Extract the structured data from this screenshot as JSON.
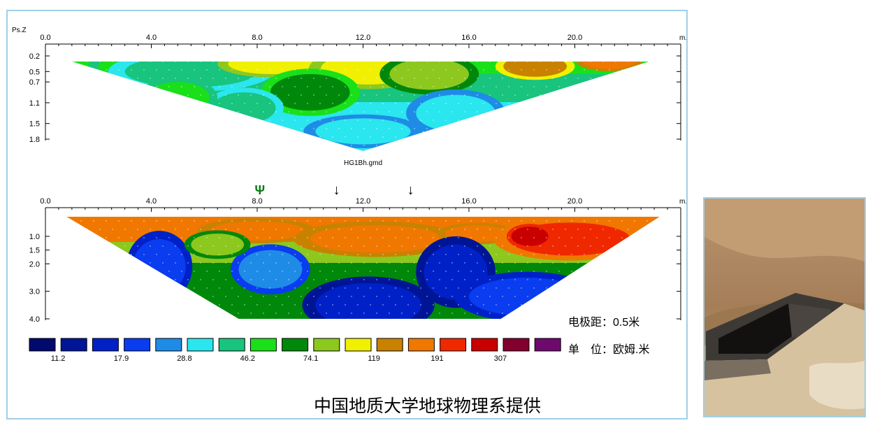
{
  "chart_data": [
    {
      "type": "heatmap",
      "title": "HG1Bh.gmd",
      "y_axis_label": "Ps.Z",
      "x_unit": "m.",
      "x_ticks": [
        "0.0",
        "4.0",
        "8.0",
        "12.0",
        "16.0",
        "20.0"
      ],
      "xlim": [
        0,
        24
      ],
      "y_ticks": [
        "0.2",
        "0.5",
        "0.7",
        "1.1",
        "1.5",
        "1.8"
      ],
      "y_values": [
        0.2,
        0.5,
        0.7,
        1.1,
        1.5,
        1.8
      ],
      "section_x_range": [
        1.0,
        22.8
      ],
      "apex_x": 12.0,
      "regions": [
        {
          "x": 3.5,
          "y": 0.4,
          "rx": 1.5,
          "ry": 0.25,
          "level": 7
        },
        {
          "x": 5.5,
          "y": 0.5,
          "rx": 2.5,
          "ry": 0.3,
          "level": 6
        },
        {
          "x": 8.5,
          "y": 0.35,
          "rx": 1.6,
          "ry": 0.2,
          "level": 10
        },
        {
          "x": 12.2,
          "y": 0.45,
          "rx": 1.8,
          "ry": 0.3,
          "level": 10
        },
        {
          "x": 14.5,
          "y": 0.55,
          "rx": 1.5,
          "ry": 0.3,
          "level": 9
        },
        {
          "x": 18.5,
          "y": 0.4,
          "rx": 1.2,
          "ry": 0.2,
          "level": 11
        },
        {
          "x": 21.3,
          "y": 0.3,
          "rx": 1.0,
          "ry": 0.15,
          "level": 12
        },
        {
          "x": 10.0,
          "y": 0.9,
          "rx": 1.5,
          "ry": 0.35,
          "level": 8
        },
        {
          "x": 15.5,
          "y": 1.3,
          "rx": 1.5,
          "ry": 0.35,
          "level": 5
        },
        {
          "x": 12.0,
          "y": 1.65,
          "rx": 1.8,
          "ry": 0.25,
          "level": 5
        },
        {
          "x": 7.5,
          "y": 1.2,
          "rx": 1.2,
          "ry": 0.3,
          "level": 6
        },
        {
          "x": 5.0,
          "y": 1.0,
          "rx": 1.2,
          "ry": 0.3,
          "level": 7
        }
      ]
    },
    {
      "type": "heatmap",
      "title": "",
      "x_unit": "m.",
      "x_ticks": [
        "0.0",
        "4.0",
        "8.0",
        "12.0",
        "16.0",
        "20.0"
      ],
      "xlim": [
        0,
        24
      ],
      "y_ticks": [
        "1.0",
        "1.5",
        "2.0",
        "3.0",
        "4.0"
      ],
      "y_values": [
        1.0,
        1.5,
        2.0,
        3.0,
        4.0
      ],
      "section_x_range": [
        0.8,
        23.2
      ],
      "bottom_x_range": [
        7.3,
        17.2
      ],
      "markers": [
        {
          "x": 8.1,
          "symbol": "Ψ"
        },
        {
          "x": 11.0,
          "symbol": "↓"
        },
        {
          "x": 13.8,
          "symbol": "↓"
        }
      ],
      "regions": [
        {
          "x": 8.0,
          "y": 0.8,
          "rx": 1.8,
          "ry": 0.35,
          "level": 12
        },
        {
          "x": 12.5,
          "y": 1.1,
          "rx": 2.5,
          "ry": 0.5,
          "level": 12
        },
        {
          "x": 16.3,
          "y": 0.9,
          "rx": 1.2,
          "ry": 0.3,
          "level": 12
        },
        {
          "x": 19.8,
          "y": 1.1,
          "rx": 2.3,
          "ry": 0.6,
          "level": 13
        },
        {
          "x": 18.3,
          "y": 1.0,
          "rx": 0.7,
          "ry": 0.35,
          "level": 14
        },
        {
          "x": 4.3,
          "y": 2.1,
          "rx": 1.0,
          "ry": 1.0,
          "level": 3
        },
        {
          "x": 8.5,
          "y": 2.2,
          "rx": 1.2,
          "ry": 0.7,
          "level": 4
        },
        {
          "x": 12.2,
          "y": 3.5,
          "rx": 2.0,
          "ry": 0.8,
          "level": 2
        },
        {
          "x": 15.5,
          "y": 2.3,
          "rx": 1.2,
          "ry": 1.0,
          "level": 2
        },
        {
          "x": 18.2,
          "y": 3.2,
          "rx": 2.2,
          "ry": 0.7,
          "level": 3
        },
        {
          "x": 6.5,
          "y": 1.3,
          "rx": 1.0,
          "ry": 0.4,
          "level": 9
        }
      ]
    }
  ],
  "annotations": {
    "electrode_spacing": "电极距：0.5米",
    "unit": "单　位：欧姆.米",
    "credit": "中国地质大学地球物理系提供"
  },
  "legend": {
    "colors": [
      "#000a6e",
      "#001596",
      "#0021c8",
      "#0a3cf0",
      "#1e8ce6",
      "#2ae6ee",
      "#18c47e",
      "#19e019",
      "#00880a",
      "#8cc81e",
      "#f0f000",
      "#c88200",
      "#f07800",
      "#f02800",
      "#c80000",
      "#82002d",
      "#6e0a6e"
    ],
    "labels": [
      {
        "after_index": 0,
        "text": "11.2"
      },
      {
        "after_index": 2,
        "text": "17.9"
      },
      {
        "after_index": 4,
        "text": "28.8"
      },
      {
        "after_index": 6,
        "text": "46.2"
      },
      {
        "after_index": 8,
        "text": "74.1"
      },
      {
        "after_index": 10,
        "text": "119"
      },
      {
        "after_index": 12,
        "text": "191"
      },
      {
        "after_index": 14,
        "text": "307"
      }
    ]
  }
}
